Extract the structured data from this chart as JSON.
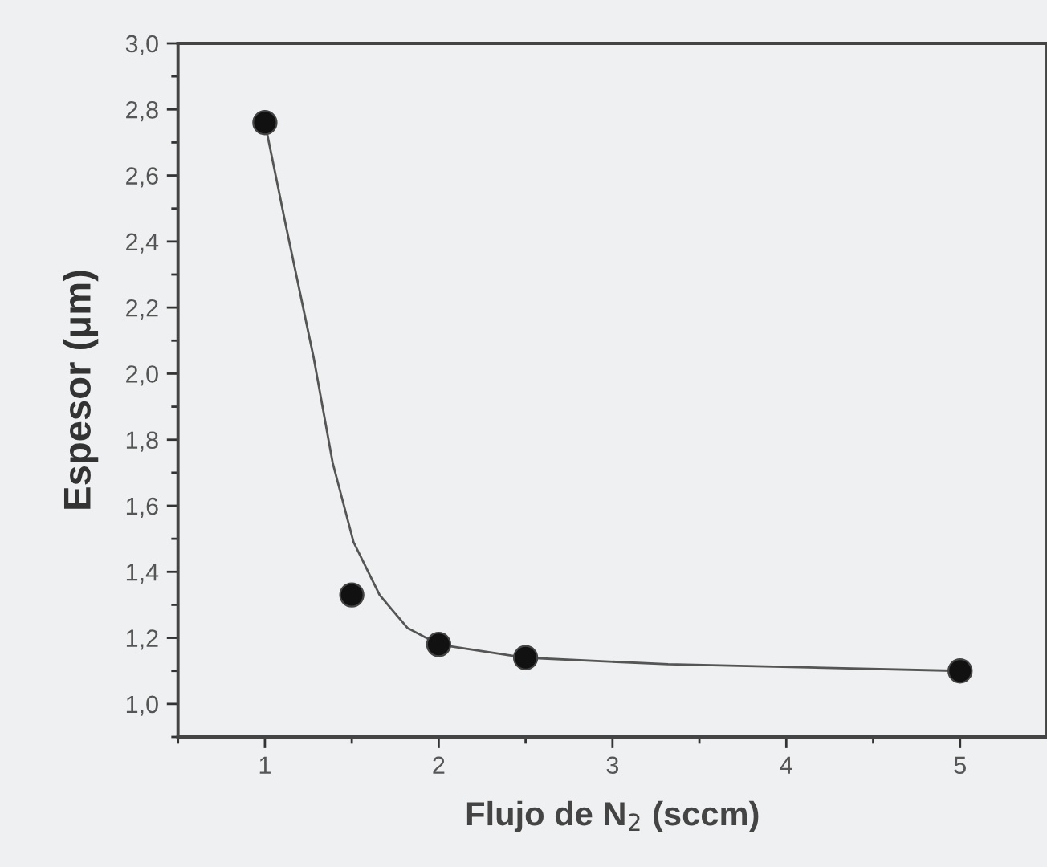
{
  "chart_data": {
    "type": "scatter",
    "xlabel": "Flujo de N$_{2}$ (sccm)",
    "ylabel": "Espesor (μm)",
    "xlim": [
      0.5,
      5.5
    ],
    "xticks": [
      1,
      2,
      3,
      4,
      5
    ],
    "ylim": [
      0.9,
      3.0
    ],
    "yticks": [
      {
        "value": 1.0,
        "label": "1,0"
      },
      {
        "value": 1.2,
        "label": "1,2"
      },
      {
        "value": 1.4,
        "label": "1,4"
      },
      {
        "value": 1.6,
        "label": "1,6"
      },
      {
        "value": 1.8,
        "label": "1,8"
      },
      {
        "value": 2.0,
        "label": "2,0"
      },
      {
        "value": 2.2,
        "label": "2,2"
      },
      {
        "value": 2.4,
        "label": "2,4"
      },
      {
        "value": 2.6,
        "label": "2,6"
      },
      {
        "value": 2.8,
        "label": "2,8"
      },
      {
        "value": 3.0,
        "label": "3,0"
      }
    ],
    "grid": false,
    "legend": false,
    "series": [
      {
        "type": "line",
        "color": "#555555",
        "marker": "none",
        "line_style": "solid",
        "x": [
          1,
          1.12,
          1.28,
          1.39,
          1.51,
          1.66,
          1.82,
          2,
          2.5,
          3.32,
          5
        ],
        "values": [
          2.76,
          2.45,
          2.05,
          1.73,
          1.49,
          1.33,
          1.23,
          1.18,
          1.14,
          1.12,
          1.1
        ]
      },
      {
        "color": "#111111",
        "marker": "circle",
        "x": [
          1,
          1.5,
          2,
          2.5,
          5
        ],
        "values": [
          2.76,
          1.33,
          1.18,
          1.14,
          1.1
        ]
      }
    ]
  }
}
